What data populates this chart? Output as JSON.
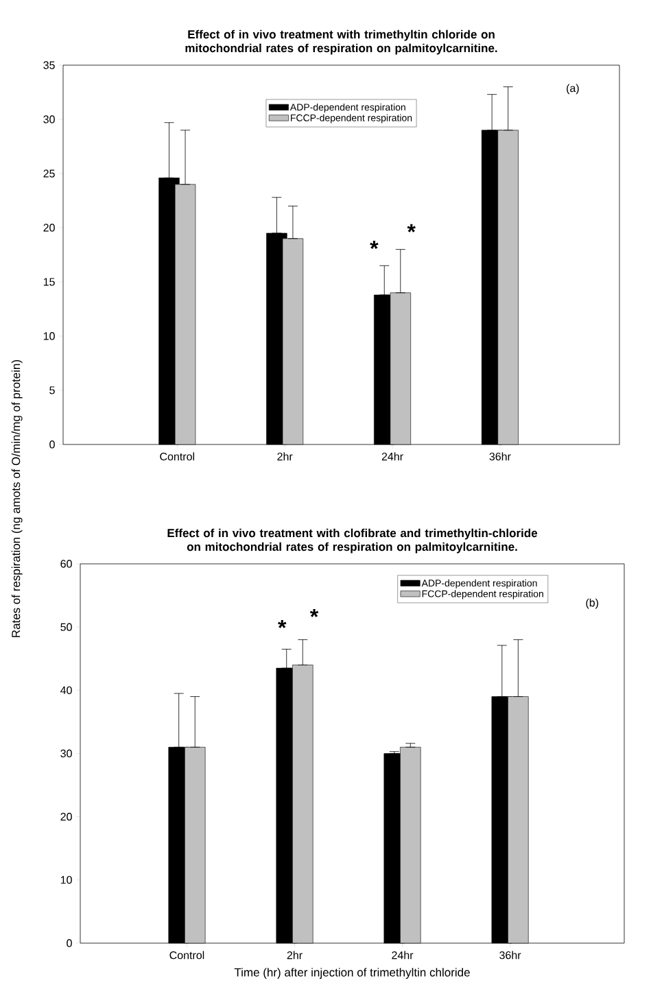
{
  "chart_data": [
    {
      "type": "bar",
      "title": "Effect of in vivo treatment with trimethyltin chloride on mitochondrial rates of respiration on palmitoylcarnitine.",
      "ylabel": "Rates of respiration (ng amots of O/min/mg of protein)",
      "categories": [
        "Control",
        "2hr",
        "24hr",
        "36hr"
      ],
      "series": [
        {
          "name": "ADP-dependent respiration",
          "color": "#000000",
          "values": [
            24.6,
            19.5,
            13.8,
            29.0
          ],
          "errors": [
            [
              24.6,
              29.7
            ],
            [
              19.5,
              22.8
            ],
            [
              13.8,
              16.5
            ],
            [
              29.0,
              32.3
            ]
          ]
        },
        {
          "name": "FCCP-dependent respiration",
          "color": "#c0c0c0",
          "values": [
            24.0,
            19.0,
            14.0,
            29.0
          ],
          "errors": [
            [
              24.0,
              29.0
            ],
            [
              19.0,
              22.0
            ],
            [
              14.0,
              18.0
            ],
            [
              29.0,
              33.0
            ]
          ]
        }
      ],
      "ylim": [
        0,
        35
      ],
      "yticks": [
        0,
        5,
        10,
        15,
        20,
        25,
        30,
        35
      ],
      "legend": "top",
      "annotations": [
        "(a)",
        "*",
        "*"
      ]
    },
    {
      "type": "bar",
      "title": "Effect of in vivo treatment with clofibrate and trimethyltin-chloride on mitochondrial rates of respiration on palmitoylcarnitine.",
      "xlabel": "Time (hr) after injection of trimethyltin chloride",
      "categories": [
        "Control",
        "2hr",
        "24hr",
        "36hr"
      ],
      "series": [
        {
          "name": "ADP-dependent respiration",
          "color": "#000000",
          "values": [
            31.0,
            43.5,
            30.0,
            39.0
          ],
          "errors": [
            [
              31.0,
              39.5
            ],
            [
              43.5,
              46.5
            ],
            [
              30.0,
              30.3
            ],
            [
              39.0,
              47.1
            ]
          ]
        },
        {
          "name": "FCCP-dependent respiration",
          "color": "#c0c0c0",
          "values": [
            31.0,
            44.0,
            31.0,
            39.0
          ],
          "errors": [
            [
              31.0,
              39.0
            ],
            [
              44.0,
              48.0
            ],
            [
              31.0,
              31.6
            ],
            [
              39.0,
              48.0
            ]
          ]
        }
      ],
      "ylim": [
        0,
        60
      ],
      "yticks": [
        0,
        10,
        20,
        30,
        40,
        50,
        60
      ],
      "legend": "top right",
      "annotations": [
        "(b)",
        "*",
        "*"
      ]
    }
  ]
}
